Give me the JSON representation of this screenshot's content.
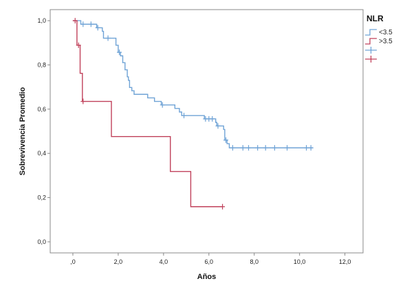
{
  "chart_data": {
    "type": "line",
    "subtype": "kaplan-meier step",
    "xlabel": "Años",
    "ylabel": "Sobrevivencia Promedio",
    "xlim": [
      -1.0,
      12.8
    ],
    "ylim": [
      -0.05,
      1.05
    ],
    "x_ticks": [
      0,
      2,
      4,
      6,
      8,
      10,
      12
    ],
    "x_tick_labels": [
      ",0",
      "2,0",
      "4,0",
      "6,0",
      "8,0",
      "10,0",
      "12,0"
    ],
    "y_ticks": [
      0,
      0.2,
      0.4,
      0.6,
      0.8,
      1.0
    ],
    "y_tick_labels": [
      "0,0",
      "0,2",
      "0,4",
      "0,6",
      "0,8",
      "1,0"
    ],
    "grid": false,
    "legend": {
      "title": "NLR",
      "placement": "top-right",
      "entries": [
        {
          "label": "<3.5",
          "symbol": "step",
          "color": "#6fa3d6"
        },
        {
          "label": ">3.5",
          "symbol": "step",
          "color": "#c0405a"
        },
        {
          "label": "",
          "symbol": "censor",
          "color": "#6fa3d6"
        },
        {
          "label": "",
          "symbol": "censor",
          "color": "#c0405a"
        }
      ]
    },
    "series": [
      {
        "name": "<3.5",
        "color": "#6fa3d6",
        "steps": [
          [
            0.0,
            1.0
          ],
          [
            0.35,
            0.984
          ],
          [
            1.05,
            0.968
          ],
          [
            1.3,
            0.952
          ],
          [
            1.35,
            0.921
          ],
          [
            1.9,
            0.889
          ],
          [
            2.0,
            0.857
          ],
          [
            2.1,
            0.841
          ],
          [
            2.2,
            0.81
          ],
          [
            2.3,
            0.778
          ],
          [
            2.4,
            0.746
          ],
          [
            2.45,
            0.73
          ],
          [
            2.5,
            0.698
          ],
          [
            2.6,
            0.683
          ],
          [
            2.7,
            0.667
          ],
          [
            3.3,
            0.651
          ],
          [
            3.6,
            0.635
          ],
          [
            3.9,
            0.619
          ],
          [
            4.5,
            0.603
          ],
          [
            4.7,
            0.587
          ],
          [
            4.8,
            0.571
          ],
          [
            5.8,
            0.556
          ],
          [
            6.3,
            0.54
          ],
          [
            6.35,
            0.524
          ],
          [
            6.65,
            0.508
          ],
          [
            6.7,
            0.46
          ],
          [
            6.8,
            0.444
          ],
          [
            6.9,
            0.425
          ],
          [
            10.6,
            0.425
          ]
        ],
        "censored": [
          [
            0.45,
            0.984
          ],
          [
            0.8,
            0.984
          ],
          [
            1.1,
            0.968
          ],
          [
            1.55,
            0.921
          ],
          [
            2.05,
            0.857
          ],
          [
            3.95,
            0.619
          ],
          [
            4.9,
            0.571
          ],
          [
            5.85,
            0.556
          ],
          [
            6.0,
            0.556
          ],
          [
            6.15,
            0.556
          ],
          [
            6.4,
            0.524
          ],
          [
            6.75,
            0.46
          ],
          [
            7.05,
            0.425
          ],
          [
            7.5,
            0.425
          ],
          [
            7.75,
            0.425
          ],
          [
            8.15,
            0.425
          ],
          [
            8.5,
            0.425
          ],
          [
            8.9,
            0.425
          ],
          [
            9.45,
            0.425
          ],
          [
            10.3,
            0.425
          ],
          [
            10.5,
            0.425
          ]
        ]
      },
      {
        "name": ">3.5",
        "color": "#c0405a",
        "steps": [
          [
            0.0,
            1.0
          ],
          [
            0.18,
            0.889
          ],
          [
            0.32,
            0.762
          ],
          [
            0.42,
            0.635
          ],
          [
            1.7,
            0.476
          ],
          [
            4.3,
            0.318
          ],
          [
            5.2,
            0.159
          ],
          [
            6.6,
            0.159
          ]
        ],
        "censored": [
          [
            0.1,
            1.0
          ],
          [
            0.25,
            0.889
          ],
          [
            0.45,
            0.635
          ],
          [
            6.6,
            0.159
          ]
        ]
      }
    ]
  }
}
